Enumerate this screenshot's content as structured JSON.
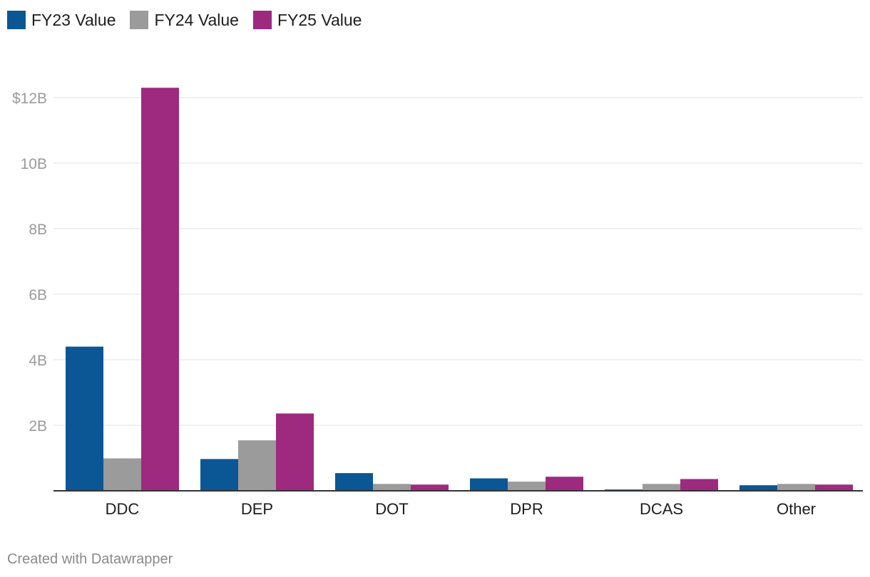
{
  "chart_data": {
    "type": "bar",
    "categories": [
      "DDC",
      "DEP",
      "DOT",
      "DPR",
      "DCAS",
      "Other"
    ],
    "series": [
      {
        "name": "FY23 Value",
        "color": "#0b5694",
        "values": [
          4.4,
          0.97,
          0.54,
          0.38,
          0.04,
          0.17
        ]
      },
      {
        "name": "FY24 Value",
        "color": "#9b9b9b",
        "values": [
          0.99,
          1.54,
          0.21,
          0.28,
          0.21,
          0.21
        ]
      },
      {
        "name": "FY25 Value",
        "color": "#9e2a80",
        "values": [
          12.3,
          2.36,
          0.19,
          0.43,
          0.36,
          0.19
        ]
      }
    ],
    "y_ticks": [
      {
        "value": 2,
        "label": "2B"
      },
      {
        "value": 4,
        "label": "4B"
      },
      {
        "value": 6,
        "label": "6B"
      },
      {
        "value": 8,
        "label": "8B"
      },
      {
        "value": 10,
        "label": "10B"
      },
      {
        "value": 12,
        "label": "$12B"
      }
    ],
    "ylim": [
      0,
      12
    ],
    "unit": "billions USD",
    "grid": true,
    "legend_position": "top-left"
  },
  "footer": {
    "credit": "Created with Datawrapper"
  }
}
